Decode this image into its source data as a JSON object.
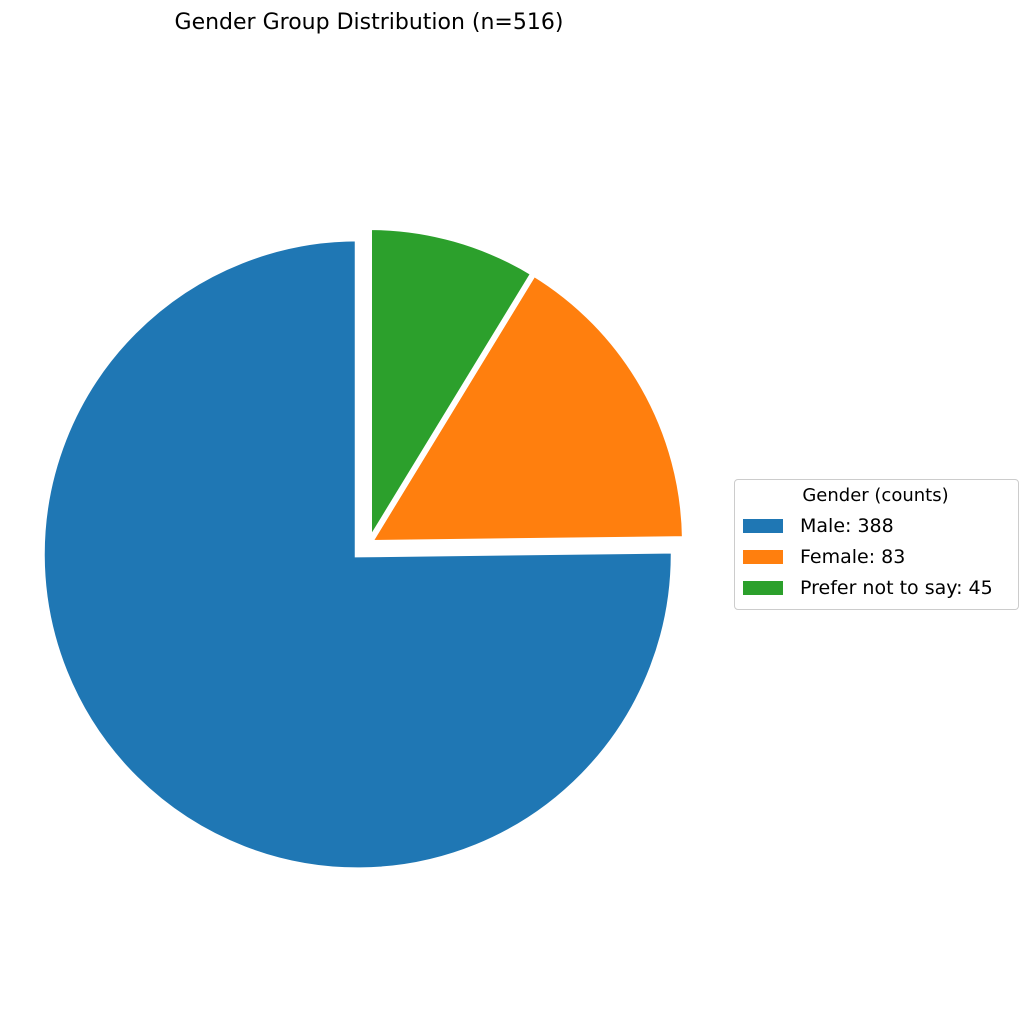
{
  "chart_data": {
    "type": "pie",
    "title": "Gender Group Distribution (n=516)",
    "legend": {
      "title": "Gender (counts)",
      "placement": "center-right"
    },
    "start_angle_deg": 90,
    "direction": "counterclockwise",
    "slices": [
      {
        "label": "Male",
        "value": 388,
        "legend_text": "Male: 388",
        "color": "#1f77b4",
        "exploded": true
      },
      {
        "label": "Female",
        "value": 83,
        "legend_text": "Female: 83",
        "color": "#ff7f0e",
        "exploded": false
      },
      {
        "label": "Prefer not to say",
        "value": 45,
        "legend_text": "Prefer not to say: 45",
        "color": "#2ca02c",
        "exploded": false
      }
    ]
  }
}
